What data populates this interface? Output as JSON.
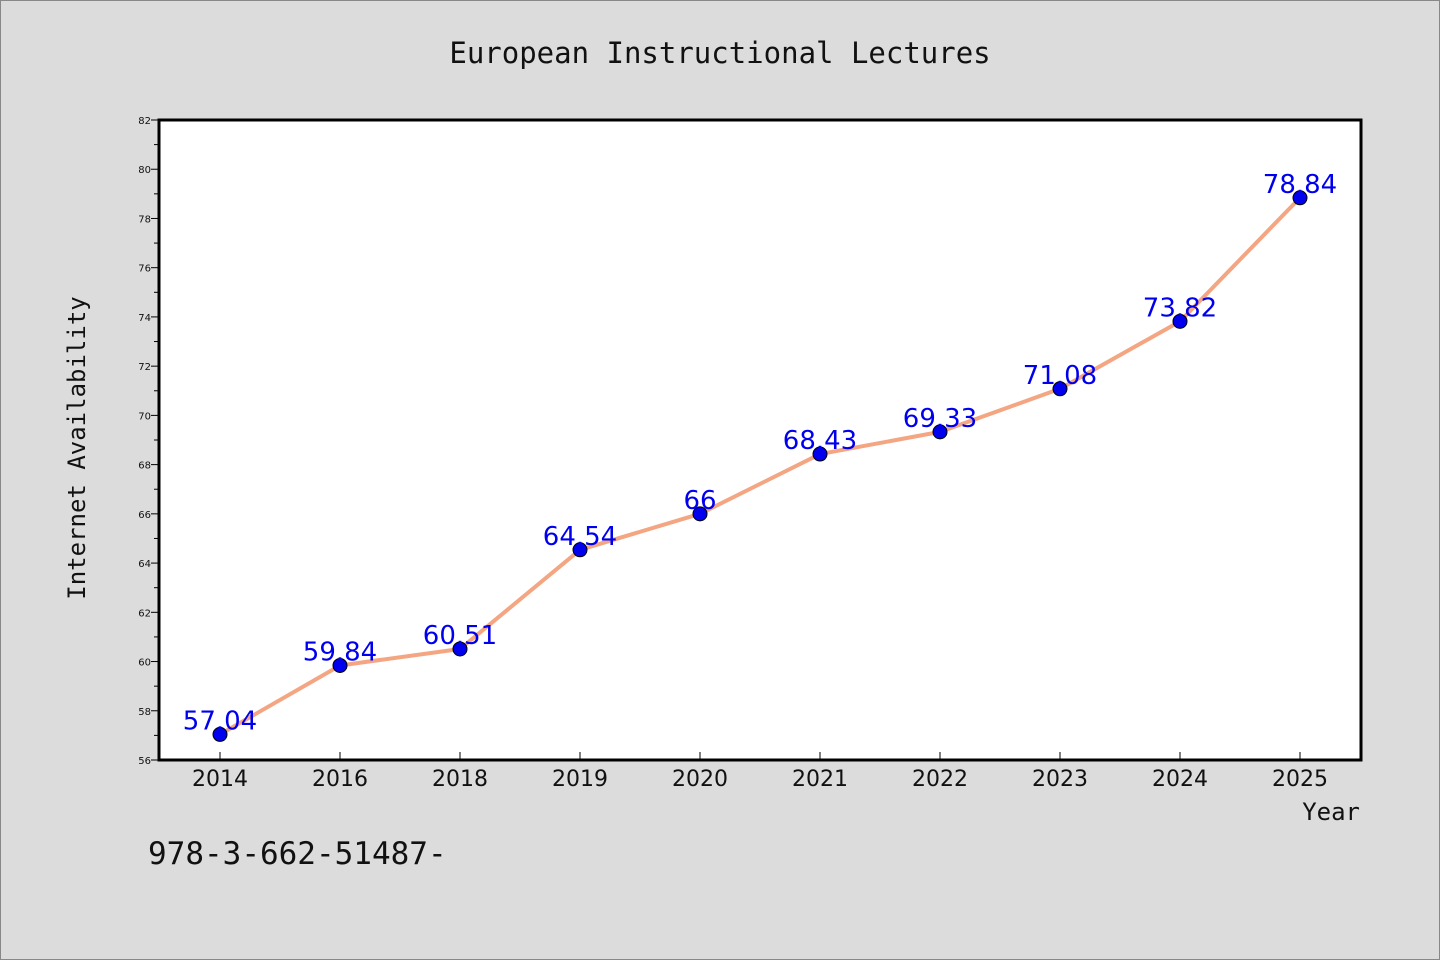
{
  "chart_data": {
    "type": "line",
    "title": "European Instructional Lectures",
    "xlabel": "Year",
    "ylabel": "Internet Availability",
    "footnote": "978-3-662-51487-",
    "x": [
      "2014",
      "2016",
      "2018",
      "2019",
      "2020",
      "2021",
      "2022",
      "2023",
      "2024",
      "2025"
    ],
    "series": [
      {
        "values": [
          57.04,
          59.84,
          60.51,
          64.54,
          66,
          68.43,
          69.33,
          71.08,
          73.82,
          78.84
        ],
        "value_labels": [
          "57.04",
          "59.84",
          "60.51",
          "64.54",
          "66",
          "68.43",
          "69.33",
          "71.08",
          "73.82",
          "78.84"
        ],
        "line_color": "#f4a582",
        "marker_color": "#0000ee"
      }
    ],
    "ylim": [
      56,
      82
    ],
    "yticks": [
      "56",
      "58",
      "60",
      "62",
      "64",
      "66",
      "68",
      "70",
      "72",
      "74",
      "76",
      "78",
      "80",
      "82"
    ],
    "grid": false,
    "legend": "none",
    "label_color": "#0000ee"
  }
}
